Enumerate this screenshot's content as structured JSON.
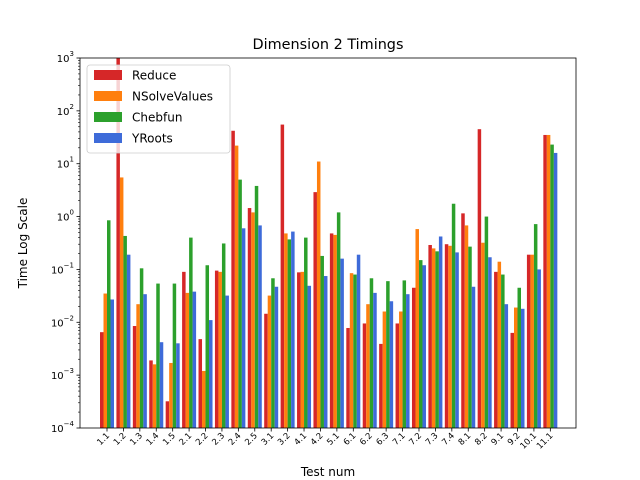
{
  "chart_data": {
    "type": "bar",
    "title": "Dimension 2 Timings",
    "xlabel": "Test num",
    "ylabel": "Time Log Scale",
    "yscale": "log",
    "ylim": [
      0.0001,
      1000
    ],
    "yticks": [
      {
        "value": 0.0001,
        "base": "10",
        "exp": "−4"
      },
      {
        "value": 0.001,
        "base": "10",
        "exp": "−3"
      },
      {
        "value": 0.01,
        "base": "10",
        "exp": "−2"
      },
      {
        "value": 0.1,
        "base": "10",
        "exp": "−1"
      },
      {
        "value": 1,
        "base": "10",
        "exp": "0"
      },
      {
        "value": 10,
        "base": "10",
        "exp": "1"
      },
      {
        "value": 100,
        "base": "10",
        "exp": "2"
      },
      {
        "value": 1000,
        "base": "10",
        "exp": "3"
      }
    ],
    "grid": false,
    "legend_position": "upper-left",
    "categories": [
      "1.1",
      "1.2",
      "1.3",
      "1.4",
      "1.5",
      "2.1",
      "2.2",
      "2.3",
      "2.4",
      "2.5",
      "3.1",
      "3.2",
      "4.1",
      "4.2",
      "5.1",
      "6.1",
      "6.2",
      "6.3",
      "7.1",
      "7.2",
      "7.3",
      "7.4",
      "8.1",
      "8.2",
      "9.1",
      "9.2",
      "10.1",
      "11.1"
    ],
    "series": [
      {
        "name": "Reduce",
        "color": "#d62728",
        "values": [
          0.0065,
          1000,
          0.0085,
          0.0019,
          0.00032,
          0.09,
          0.0048,
          0.095,
          42,
          1.45,
          0.0145,
          55,
          0.088,
          2.9,
          0.48,
          0.0078,
          0.0095,
          0.0039,
          0.0095,
          0.045,
          0.29,
          0.3,
          1.15,
          45,
          0.09,
          0.0063,
          0.19,
          35
        ]
      },
      {
        "name": "NSolveValues",
        "color": "#ff7f0e",
        "values": [
          0.035,
          5.5,
          0.022,
          0.0016,
          0.0017,
          0.036,
          0.0012,
          0.09,
          22,
          1.2,
          0.032,
          0.48,
          0.09,
          11,
          0.45,
          0.085,
          0.022,
          0.016,
          0.016,
          0.58,
          0.25,
          0.28,
          0.68,
          0.32,
          0.14,
          0.019,
          0.19,
          35
        ]
      },
      {
        "name": "Chebfun",
        "color": "#2ca02c",
        "values": [
          0.85,
          0.43,
          0.105,
          0.054,
          0.054,
          0.4,
          0.12,
          0.31,
          5,
          3.8,
          0.068,
          0.37,
          0.4,
          0.18,
          1.2,
          0.08,
          0.068,
          0.06,
          0.062,
          0.15,
          0.22,
          1.75,
          0.27,
          1.0,
          0.08,
          0.045,
          0.72,
          23
        ]
      },
      {
        "name": "YRoots",
        "color": "#3e6bd9",
        "values": [
          0.027,
          0.19,
          0.034,
          0.0042,
          0.004,
          0.038,
          0.011,
          0.032,
          0.6,
          0.68,
          0.047,
          0.52,
          0.049,
          0.075,
          0.16,
          0.19,
          0.036,
          0.025,
          0.034,
          0.12,
          0.42,
          0.21,
          0.047,
          0.17,
          0.022,
          0.018,
          0.1,
          16
        ]
      }
    ]
  }
}
